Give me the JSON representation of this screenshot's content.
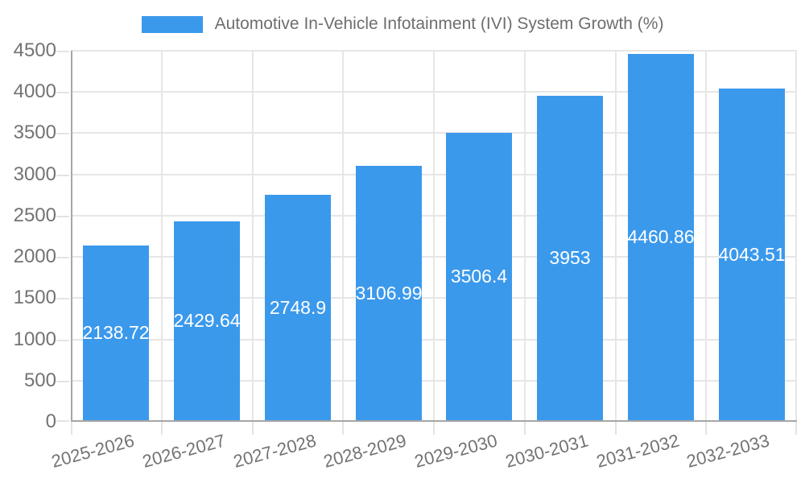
{
  "chart_data": {
    "type": "bar",
    "title": "Automotive In-Vehicle Infotainment (IVI) System Growth (%)",
    "categories": [
      "2025-2026",
      "2026-2027",
      "2027-2028",
      "2028-2029",
      "2029-2030",
      "2030-2031",
      "2031-2032",
      "2032-2033"
    ],
    "values": [
      2138.72,
      2429.64,
      2748.9,
      3106.99,
      3506.4,
      3953,
      4460.86,
      4043.51
    ],
    "bar_labels": [
      "2138.72",
      "2429.64",
      "2748.9",
      "3106.99",
      "3506.4",
      "3953",
      "4460.86",
      "4043.51"
    ],
    "xlabel": "",
    "ylabel": "",
    "ylim": [
      0,
      4500
    ],
    "ytick_step": 500,
    "ytick_labels": [
      "0",
      "500",
      "1000",
      "1500",
      "2000",
      "2500",
      "3000",
      "3500",
      "4000",
      "4500"
    ],
    "legend_position": "top",
    "grid": "horizontal and vertical light gridlines",
    "colors": {
      "bar": "#3b99ec",
      "bar_label": "#ffffff",
      "axis_text": "#737373",
      "title_text": "#6e6e6e",
      "grid_line": "#e6e6e6",
      "tick_line": "#e3e3e3",
      "axis_line": "#a6a6a6",
      "background": "#ffffff"
    }
  }
}
